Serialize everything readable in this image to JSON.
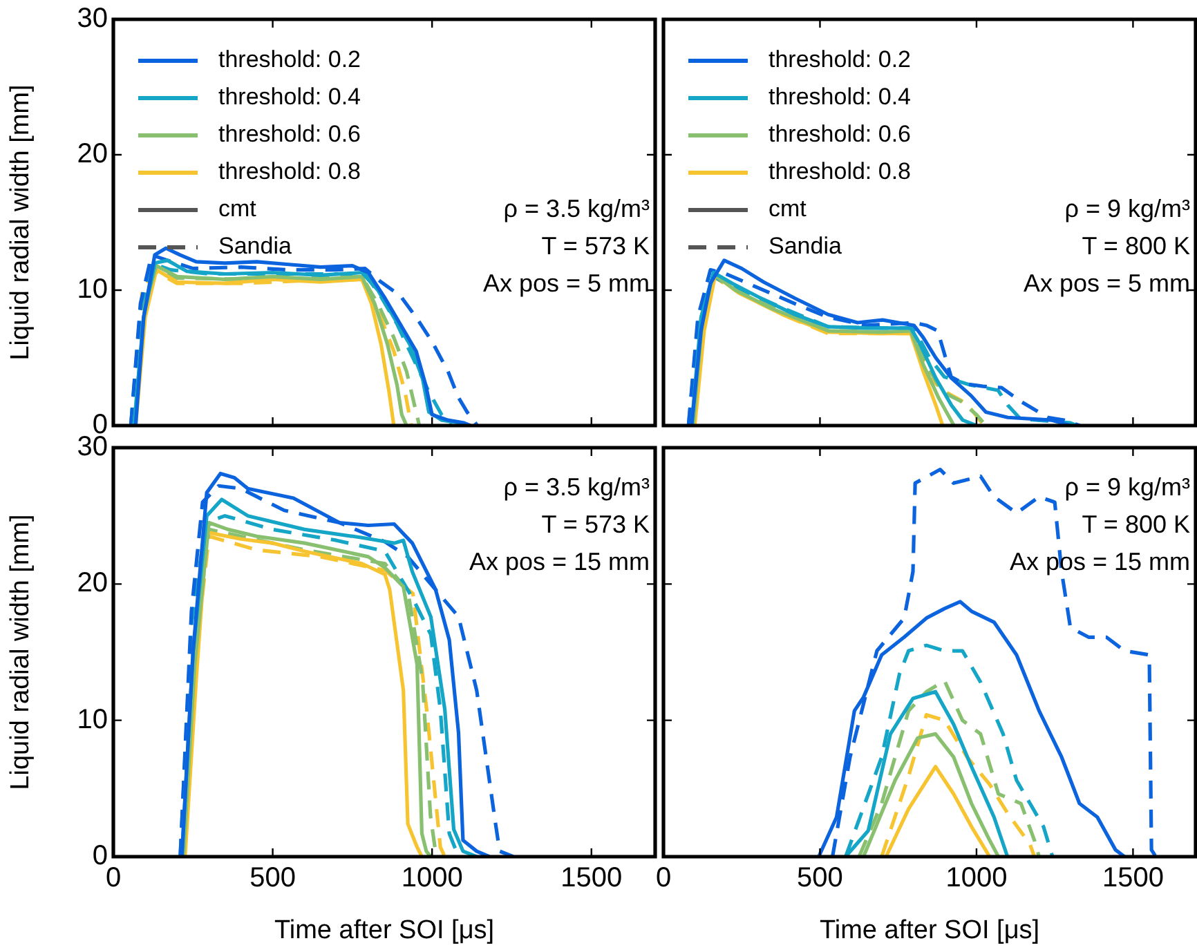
{
  "chart_data": [
    {
      "type": "line",
      "ylabel": "Liquid radial width [mm]",
      "xlim": [
        0,
        1700
      ],
      "xticks": [
        0,
        500,
        1000,
        1500
      ],
      "ylim": [
        0,
        30
      ],
      "yticks": [
        0,
        10,
        20,
        30
      ],
      "tick_labels": "y",
      "legend": "top left",
      "annotations": [
        "ρ = 3.5 kg/m³",
        "T = 573 K",
        "Ax pos = 5 mm"
      ],
      "series": [
        {
          "name": "threshold: 0.2",
          "color": "#0b63de",
          "line_style": "solid",
          "x": [
            70,
            95,
            130,
            165,
            210,
            260,
            350,
            450,
            550,
            650,
            750,
            800,
            850,
            900,
            950,
            980,
            1000,
            1050,
            1100,
            1120
          ],
          "values": [
            0,
            8,
            12.6,
            13.1,
            12.6,
            12.1,
            12,
            12.1,
            11.9,
            11.7,
            11.8,
            11.3,
            9.5,
            7.5,
            5.5,
            3,
            0.8,
            0.4,
            0.2,
            0
          ]
        },
        {
          "name": "threshold: 0.4",
          "color": "#15a5c6",
          "line_style": "solid",
          "x": [
            65,
            95,
            130,
            170,
            230,
            350,
            500,
            650,
            780,
            830,
            880,
            930,
            970,
            990,
            1030,
            1090,
            1100
          ],
          "values": [
            0,
            8,
            12,
            12.2,
            11.4,
            11.2,
            11.3,
            11.1,
            11.3,
            10,
            8,
            6,
            3.5,
            1,
            0.4,
            0.2,
            0
          ]
        },
        {
          "name": "threshold: 0.6",
          "color": "#88c070",
          "line_style": "solid",
          "x": [
            65,
            100,
            135,
            200,
            350,
            500,
            650,
            780,
            820,
            860,
            890,
            905,
            920
          ],
          "values": [
            0,
            9,
            11.8,
            11,
            10.8,
            11,
            10.8,
            11,
            9,
            6,
            3,
            0.8,
            0
          ]
        },
        {
          "name": "threshold: 0.8",
          "color": "#f7c431",
          "line_style": "solid",
          "x": [
            70,
            100,
            135,
            200,
            350,
            500,
            650,
            780,
            810,
            840,
            865,
            880
          ],
          "values": [
            0,
            8,
            11.5,
            10.6,
            10.5,
            10.8,
            10.6,
            10.8,
            9,
            6,
            2.5,
            0
          ]
        },
        {
          "color": "#0b63de",
          "line_style": "dashed",
          "x": [
            55,
            85,
            120,
            170,
            250,
            400,
            550,
            700,
            790,
            840,
            900,
            950,
            1000,
            1050,
            1082,
            1110,
            1142
          ],
          "values": [
            0,
            9,
            12.6,
            12.2,
            11.6,
            11.7,
            11.5,
            11.5,
            11.6,
            10.6,
            9.6,
            8,
            6.2,
            4,
            2.1,
            1,
            0
          ]
        },
        {
          "color": "#15a5c6",
          "line_style": "dashed",
          "x": [
            55,
            85,
            120,
            180,
            300,
            500,
            700,
            790,
            840,
            890,
            940,
            990,
            1030,
            1060
          ],
          "values": [
            0,
            8.5,
            12,
            11.5,
            11.2,
            11.2,
            11.2,
            11.2,
            9.5,
            7.5,
            5,
            2.5,
            0.8,
            0
          ]
        },
        {
          "color": "#88c070",
          "line_style": "dashed",
          "x": [
            55,
            85,
            125,
            200,
            400,
            600,
            780,
            830,
            880,
            920,
            945,
            960
          ],
          "values": [
            0,
            8,
            11.6,
            10.9,
            10.8,
            10.9,
            11,
            9,
            6.5,
            4,
            1.5,
            0
          ]
        },
        {
          "color": "#f7c431",
          "line_style": "dashed",
          "x": [
            55,
            80,
            90,
            130,
            200,
            400,
            600,
            780,
            830,
            880,
            915,
            935
          ],
          "values": [
            0,
            3,
            10,
            11.4,
            10.5,
            10.5,
            10.7,
            10.8,
            8.5,
            5.5,
            2.5,
            0
          ]
        },
        {
          "name": "cmt",
          "color": "#555555",
          "line_style": "solid"
        },
        {
          "name": "Sandia",
          "color": "#555555",
          "line_style": "dashed"
        }
      ]
    },
    {
      "type": "line",
      "xlim": [
        0,
        1700
      ],
      "xticks": [
        0,
        500,
        1000,
        1500
      ],
      "ylim": [
        0,
        30
      ],
      "yticks": [
        0,
        10,
        20,
        30
      ],
      "tick_labels": false,
      "legend": "top left",
      "annotations": [
        "ρ = 9 kg/m³",
        "T = 800 K",
        "Ax pos = 5 mm"
      ],
      "series": [
        {
          "name": "threshold: 0.2",
          "color": "#0b63de",
          "line_style": "solid",
          "x": [
            90,
            120,
            150,
            194,
            250,
            320,
            420,
            526,
            620,
            700,
            800,
            830,
            870,
            920,
            983,
            1030,
            1100,
            1240,
            1300
          ],
          "values": [
            0,
            7,
            10.5,
            12.2,
            11.6,
            10.6,
            9.4,
            8.2,
            7.6,
            7.8,
            7.4,
            6.5,
            5,
            3.5,
            2.2,
            1,
            0.6,
            0.4,
            0
          ]
        },
        {
          "name": "threshold: 0.4",
          "color": "#15a5c6",
          "line_style": "solid",
          "x": [
            90,
            120,
            160,
            220,
            320,
            420,
            526,
            650,
            790,
            820,
            870,
            920,
            956,
            1000
          ],
          "values": [
            0,
            8,
            11.3,
            10.5,
            9.3,
            8.2,
            7.3,
            7.2,
            7.2,
            6,
            3.5,
            1.5,
            0.4,
            0
          ]
        },
        {
          "name": "threshold: 0.6",
          "color": "#88c070",
          "line_style": "solid",
          "x": [
            95,
            125,
            160,
            230,
            350,
            526,
            700,
            790,
            830,
            880,
            928
          ],
          "values": [
            0,
            8,
            11.2,
            10,
            8.6,
            7,
            6.9,
            7,
            4.5,
            2,
            0
          ]
        },
        {
          "name": "threshold: 0.8",
          "color": "#f7c431",
          "line_style": "solid",
          "x": [
            100,
            130,
            165,
            240,
            380,
            526,
            700,
            790,
            830,
            870,
            892
          ],
          "values": [
            0,
            7,
            11.1,
            9.8,
            8.2,
            6.9,
            6.8,
            6.8,
            4,
            1.5,
            0
          ]
        },
        {
          "color": "#0b63de",
          "line_style": "dashed",
          "x": [
            80,
            110,
            150,
            200,
            300,
            420,
            526,
            650,
            800,
            840,
            876,
            919,
            960,
            1020,
            1080,
            1140,
            1228,
            1280,
            1330
          ],
          "values": [
            0,
            8,
            11.5,
            11.2,
            10.2,
            9,
            8,
            7.4,
            7.6,
            7.4,
            7,
            3.6,
            3.1,
            2.9,
            2.8,
            1.8,
            0.6,
            0.4,
            0
          ]
        },
        {
          "color": "#15a5c6",
          "line_style": "dashed",
          "x": [
            80,
            110,
            160,
            250,
            400,
            526,
            700,
            800,
            850,
            897,
            980,
            1069,
            1100,
            1140,
            1300,
            1320
          ],
          "values": [
            0,
            7.5,
            11,
            10,
            8.5,
            7.3,
            7.2,
            7.2,
            5,
            3.6,
            3,
            2.6,
            1.5,
            0.5,
            0.2,
            0
          ]
        },
        {
          "color": "#88c070",
          "line_style": "dashed",
          "x": [
            85,
            110,
            160,
            250,
            400,
            526,
            700,
            795,
            840,
            890,
            950,
            1000,
            1030
          ],
          "values": [
            0,
            7.5,
            11,
            9.8,
            8.2,
            7,
            6.9,
            7,
            4.5,
            2.5,
            1.8,
            0.8,
            0
          ]
        },
        {
          "color": "#f7c431",
          "line_style": "dashed",
          "x": [
            85,
            115,
            160,
            250,
            400,
            526,
            700,
            800,
            850,
            900,
            970,
            1024
          ],
          "values": [
            0,
            7,
            11,
            9.7,
            8,
            6.8,
            6.8,
            6.8,
            3.5,
            2.5,
            1.6,
            0
          ]
        },
        {
          "name": "cmt",
          "color": "#555555",
          "line_style": "solid"
        },
        {
          "name": "Sandia",
          "color": "#555555",
          "line_style": "dashed"
        }
      ]
    },
    {
      "type": "line",
      "xlabel": "Time after SOI [μs]",
      "ylabel": "Liquid radial width [mm]",
      "xlim": [
        0,
        1700
      ],
      "xticks": [
        0,
        500,
        1000,
        1500
      ],
      "ylim": [
        0,
        30
      ],
      "yticks": [
        0,
        10,
        20,
        30
      ],
      "annotations": [
        "ρ = 3.5 kg/m³",
        "T = 573 K",
        "Ax pos = 15 mm"
      ],
      "series": [
        {
          "color": "#0b63de",
          "line_style": "solid",
          "x": [
            215,
            250,
            293,
            336,
            380,
            422,
            565,
            709,
            800,
            881,
            938,
            1011,
            1054,
            1083,
            1097,
            1140,
            1180
          ],
          "values": [
            0,
            15,
            26.7,
            28.1,
            27.8,
            27,
            26.3,
            24.5,
            24.3,
            24.4,
            23,
            19.6,
            15.9,
            9.1,
            1.2,
            0.4,
            0
          ]
        },
        {
          "color": "#15a5c6",
          "line_style": "solid",
          "x": [
            215,
            250,
            293,
            340,
            422,
            600,
            780,
            881,
            910,
            938,
            996,
            1040,
            1068,
            1097,
            1140
          ],
          "values": [
            0,
            15,
            25,
            26.2,
            25,
            24,
            23.4,
            23,
            23.2,
            20.9,
            17.6,
            10.8,
            2,
            0.4,
            0
          ]
        },
        {
          "color": "#88c070",
          "line_style": "solid",
          "x": [
            220,
            255,
            300,
            360,
            450,
            600,
            800,
            852,
            910,
            953,
            968,
            982,
            996
          ],
          "values": [
            0,
            14,
            24.5,
            24,
            23.5,
            23,
            22,
            21.2,
            19.8,
            14.1,
            1.7,
            0.4,
            0
          ]
        },
        {
          "color": "#f7c431",
          "line_style": "solid",
          "x": [
            225,
            260,
            293,
            400,
            500,
            600,
            780,
            852,
            867,
            910,
            924,
            953,
            968
          ],
          "values": [
            0,
            13,
            23.8,
            23.3,
            23,
            22.4,
            21.5,
            20.7,
            19.6,
            12.2,
            2.4,
            0.7,
            0
          ]
        },
        {
          "color": "#0b63de",
          "line_style": "dashed",
          "x": [
            210,
            245,
            280,
            330,
            400,
            536,
            709,
            852,
            924,
            996,
            1083,
            1140,
            1198,
            1212,
            1255
          ],
          "values": [
            0,
            18,
            26,
            27.2,
            27,
            25.4,
            24.5,
            23.1,
            22,
            20,
            17.6,
            12.2,
            2.6,
            0.4,
            0
          ]
        },
        {
          "color": "#15a5c6",
          "line_style": "dashed",
          "x": [
            210,
            245,
            290,
            350,
            500,
            700,
            852,
            938,
            996,
            1026,
            1054,
            1083
          ],
          "values": [
            0,
            17,
            24.5,
            25,
            24,
            23.2,
            22.4,
            19,
            16.3,
            10.8,
            1.7,
            0
          ]
        },
        {
          "color": "#88c070",
          "line_style": "dashed",
          "x": [
            215,
            250,
            300,
            400,
            600,
            852,
            924,
            970,
            995,
            1010,
            1030
          ],
          "values": [
            0,
            15,
            24,
            23.5,
            22.5,
            21.5,
            19.5,
            13,
            3,
            0.5,
            0
          ]
        },
        {
          "color": "#f7c431",
          "line_style": "dashed",
          "x": [
            220,
            255,
            300,
            450,
            650,
            852,
            940,
            983,
            1026,
            1040
          ],
          "values": [
            0,
            14,
            23.5,
            22.5,
            22,
            21,
            19.3,
            10.8,
            0.7,
            0
          ]
        }
      ]
    },
    {
      "type": "line",
      "xlabel": "Time after SOI [μs]",
      "xlim": [
        0,
        1700
      ],
      "xticks": [
        0,
        500,
        1000,
        1500
      ],
      "ylim": [
        0,
        30
      ],
      "yticks": [
        0,
        10,
        20,
        30
      ],
      "tick_labels": "x",
      "annotations": [
        "ρ = 9 kg/m³",
        "T = 800 K",
        "Ax pos = 15 mm"
      ],
      "series": [
        {
          "color": "#0b63de",
          "line_style": "solid",
          "x": [
            496,
            553,
            610,
            639,
            697,
            769,
            840,
            898,
            948,
            984,
            1056,
            1128,
            1200,
            1272,
            1329,
            1386,
            1444,
            1473
          ],
          "values": [
            0,
            2.9,
            10.7,
            11.7,
            14.8,
            16.1,
            17.5,
            18.2,
            18.7,
            18,
            17.2,
            14.8,
            10.7,
            7.3,
            3.9,
            2.9,
            0.5,
            0
          ]
        },
        {
          "color": "#15a5c6",
          "line_style": "solid",
          "x": [
            582,
            654,
            725,
            797,
            869,
            927,
            984,
            1056,
            1099
          ],
          "values": [
            0,
            1.9,
            9,
            11.6,
            12.1,
            9.7,
            6.6,
            2.9,
            0
          ]
        },
        {
          "color": "#88c070",
          "line_style": "solid",
          "x": [
            639,
            740,
            812,
            869,
            927,
            984,
            1042,
            1070
          ],
          "values": [
            0,
            5.6,
            8.7,
            9,
            7.3,
            3.9,
            1.2,
            0
          ]
        },
        {
          "color": "#f7c431",
          "line_style": "solid",
          "x": [
            711,
            783,
            869,
            927,
            984,
            1042
          ],
          "values": [
            0,
            3.5,
            6.6,
            4.6,
            2.2,
            0
          ]
        },
        {
          "color": "#0b63de",
          "line_style": "dashed",
          "x": [
            540,
            596,
            682,
            769,
            797,
            804,
            884,
            927,
            1013,
            1056,
            1128,
            1200,
            1250,
            1272,
            1300,
            1358,
            1415,
            1473,
            1552,
            1559,
            1573
          ],
          "values": [
            0,
            7.3,
            15.1,
            17.5,
            20.9,
            27.4,
            28.4,
            27.4,
            27.9,
            26.4,
            25.2,
            26.4,
            26,
            20.9,
            16.8,
            16.1,
            16.1,
            15.1,
            14.8,
            0.5,
            0
          ]
        },
        {
          "color": "#15a5c6",
          "line_style": "dashed",
          "x": [
            582,
            697,
            754,
            783,
            840,
            898,
            955,
            1013,
            1085,
            1128,
            1171,
            1214,
            1243
          ],
          "values": [
            0,
            7.3,
            13.4,
            15.1,
            15.5,
            15.1,
            15.1,
            12.8,
            9,
            5.6,
            3.9,
            2.2,
            0
          ]
        },
        {
          "color": "#88c070",
          "line_style": "dashed",
          "x": [
            625,
            697,
            783,
            840,
            898,
            955,
            1013,
            1070,
            1142,
            1185,
            1200
          ],
          "values": [
            0,
            3.9,
            10.7,
            12.1,
            12.9,
            10,
            9,
            4.6,
            3.9,
            1.2,
            0
          ]
        },
        {
          "color": "#f7c431",
          "line_style": "dashed",
          "x": [
            697,
            783,
            840,
            898,
            970,
            1042,
            1099,
            1171,
            1185
          ],
          "values": [
            0,
            5.9,
            10.4,
            10,
            7.3,
            5.3,
            3.2,
            0.9,
            0
          ]
        }
      ]
    }
  ]
}
